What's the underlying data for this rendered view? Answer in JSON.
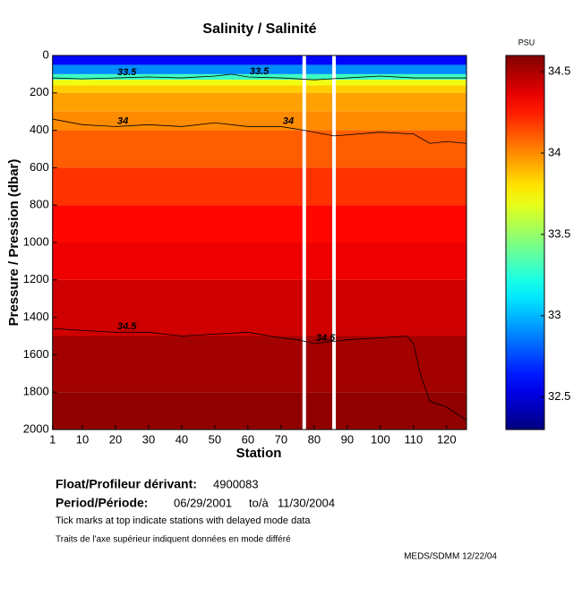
{
  "chart_data": {
    "type": "heatmap",
    "title": "Salinity / Salinité",
    "x_label": "Station",
    "y_label": "Pressure / Pression (dbar)",
    "colormap": "jet",
    "xlim": [
      1,
      126
    ],
    "ylim": [
      2000,
      0
    ],
    "xticks": [
      1,
      10,
      20,
      30,
      40,
      50,
      60,
      70,
      80,
      90,
      100,
      110,
      120
    ],
    "yticks": [
      0,
      200,
      400,
      600,
      800,
      1000,
      1200,
      1400,
      1600,
      1800,
      2000
    ],
    "depth_bins": [
      0,
      50,
      100,
      130,
      160,
      200,
      300,
      400,
      600,
      800,
      1000,
      1200,
      1500,
      1800,
      2000
    ],
    "values": [
      32.6,
      32.9,
      33.3,
      33.7,
      33.85,
      33.95,
      34.0,
      34.1,
      34.2,
      34.3,
      34.35,
      34.42,
      34.52,
      34.56
    ],
    "gaps": [
      77,
      86
    ],
    "contours": [
      {
        "level": 33.5,
        "x": [
          1,
          10,
          20,
          30,
          40,
          50,
          55,
          60,
          70,
          80,
          90,
          100,
          110,
          126
        ],
        "y": [
          120,
          125,
          120,
          115,
          120,
          110,
          100,
          115,
          120,
          130,
          120,
          110,
          120,
          120
        ]
      },
      {
        "level": 34,
        "x": [
          1,
          10,
          20,
          30,
          40,
          50,
          60,
          70,
          77,
          86,
          100,
          110,
          115,
          120,
          126
        ],
        "y": [
          340,
          370,
          380,
          370,
          380,
          360,
          380,
          380,
          400,
          430,
          410,
          420,
          470,
          460,
          470
        ]
      },
      {
        "level": 34.5,
        "x": [
          1,
          10,
          20,
          30,
          40,
          50,
          60,
          70,
          75,
          80,
          90,
          100,
          108,
          110,
          112,
          115,
          120,
          126
        ],
        "y": [
          1460,
          1470,
          1480,
          1480,
          1500,
          1490,
          1480,
          1510,
          1520,
          1540,
          1520,
          1510,
          1500,
          1540,
          1700,
          1850,
          1880,
          1950
        ]
      }
    ],
    "colorbar_label": "PSU",
    "clim": [
      32.3,
      34.6
    ],
    "colorbar_ticks": [
      32.5,
      33,
      33.5,
      34,
      34.5
    ],
    "float_label": "Float/Profileur dérivant:",
    "float_id": "4900083",
    "period_label": "Period/Période:",
    "period_start": "06/29/2001",
    "period_to": "to/à",
    "period_end": "11/30/2004",
    "note_en": "Tick marks at top indicate stations with delayed mode data",
    "note_fr": "Traits de l'axe supérieur indiquent données en mode différé",
    "credit": "MEDS/SDMM  12/22/04"
  }
}
